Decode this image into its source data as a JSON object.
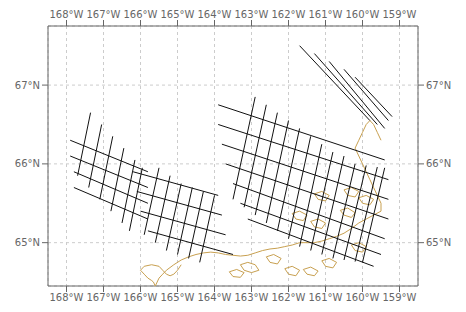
{
  "chart_data": {
    "type": "line",
    "xlim": [
      -168.5,
      -158.5
    ],
    "ylim": [
      64.45,
      67.75
    ],
    "xticks": [
      {
        "value": -168,
        "label": "168°W"
      },
      {
        "value": -167,
        "label": "167°W"
      },
      {
        "value": -166,
        "label": "166°W"
      },
      {
        "value": -165,
        "label": "165°W"
      },
      {
        "value": -164,
        "label": "164°W"
      },
      {
        "value": -163,
        "label": "163°W"
      },
      {
        "value": -162,
        "label": "162°W"
      },
      {
        "value": -161,
        "label": "161°W"
      },
      {
        "value": -160,
        "label": "160°W"
      },
      {
        "value": -159,
        "label": "159°W"
      }
    ],
    "yticks": [
      {
        "value": 65,
        "label": "65°N"
      },
      {
        "value": 66,
        "label": "66°N"
      },
      {
        "value": 67,
        "label": "67°N"
      }
    ],
    "grid": true,
    "series": [
      {
        "color": "#c8a050",
        "x": [
          -165.55,
          -165.5,
          -165.4,
          -165.3,
          -165.1,
          -164.9,
          -164.7,
          -164.5,
          -164.3,
          -164.1,
          -163.9,
          -163.7,
          -163.5,
          -163.3,
          -163.1,
          -162.9,
          -162.7,
          -162.5,
          -162.3,
          -162.1,
          -161.9,
          -161.7,
          -161.5,
          -161.3,
          -161.1,
          -160.9,
          -160.7,
          -160.5,
          -160.3,
          -160.1,
          -159.9,
          -159.7,
          -159.5
        ],
        "values": [
          64.5,
          64.55,
          64.6,
          64.65,
          64.72,
          64.78,
          64.82,
          64.85,
          64.87,
          64.88,
          64.87,
          64.85,
          64.84,
          64.83,
          64.84,
          64.87,
          64.9,
          64.92,
          64.93,
          64.95,
          64.97,
          65.0,
          65.0,
          65.0,
          65.02,
          65.05,
          65.08,
          65.12,
          65.18,
          65.25,
          65.3,
          65.35,
          65.4
        ]
      },
      {
        "color": "#c8a050",
        "x": [
          -165.55,
          -165.6,
          -165.65,
          -165.7,
          -165.8,
          -165.9,
          -166.0,
          -165.9,
          -165.7,
          -165.5,
          -165.4,
          -165.3,
          -165.2,
          -165.1,
          -165.0,
          -164.9
        ],
        "values": [
          64.5,
          64.45,
          64.5,
          64.52,
          64.55,
          64.6,
          64.65,
          64.7,
          64.72,
          64.7,
          64.65,
          64.6,
          64.58,
          64.6,
          64.65,
          64.72
        ]
      },
      {
        "color": "#c8a050",
        "x": [
          -159.5,
          -159.5,
          -159.6,
          -159.7,
          -159.8,
          -159.9,
          -160.0,
          -160.1,
          -160.2,
          -160.1,
          -160.0,
          -159.9,
          -159.8,
          -159.7,
          -159.6,
          -159.5
        ],
        "values": [
          65.4,
          65.5,
          65.6,
          65.7,
          65.8,
          65.9,
          66.0,
          66.1,
          66.2,
          66.3,
          66.4,
          66.5,
          66.55,
          66.5,
          66.4,
          66.3
        ]
      },
      {
        "color": "#c8a050",
        "x": [
          -163.2,
          -163.0,
          -162.8,
          -162.9,
          -163.1,
          -163.3,
          -163.2
        ],
        "values": [
          64.65,
          64.62,
          64.65,
          64.72,
          64.75,
          64.72,
          64.65
        ]
      },
      {
        "color": "#c8a050",
        "x": [
          -162.0,
          -161.8,
          -161.7,
          -161.9,
          -162.1,
          -162.0
        ],
        "values": [
          64.6,
          64.58,
          64.65,
          64.7,
          64.67,
          64.6
        ]
      },
      {
        "color": "#c8a050",
        "x": [
          -161.0,
          -160.8,
          -160.7,
          -160.9,
          -161.1,
          -161.0
        ],
        "values": [
          64.7,
          64.68,
          64.75,
          64.8,
          64.77,
          64.7
        ]
      },
      {
        "color": "#c8a050",
        "x": [
          -160.2,
          -160.0,
          -159.9,
          -160.1,
          -160.3,
          -160.2
        ],
        "values": [
          64.9,
          64.88,
          64.95,
          65.0,
          64.97,
          64.9
        ]
      },
      {
        "color": "#c8a050",
        "x": [
          -160.5,
          -160.3,
          -160.2,
          -160.4,
          -160.6,
          -160.5
        ],
        "values": [
          65.35,
          65.32,
          65.38,
          65.44,
          65.41,
          65.35
        ]
      },
      {
        "color": "#c8a050",
        "x": [
          -161.3,
          -161.1,
          -161.0,
          -161.2,
          -161.4,
          -161.3
        ],
        "values": [
          65.2,
          65.18,
          65.25,
          65.3,
          65.27,
          65.2
        ]
      },
      {
        "color": "#c8a050",
        "x": [
          -161.8,
          -161.6,
          -161.5,
          -161.7,
          -161.9,
          -161.8
        ],
        "values": [
          65.3,
          65.28,
          65.35,
          65.4,
          65.37,
          65.3
        ]
      },
      {
        "color": "#c8a050",
        "x": [
          -162.5,
          -162.3,
          -162.2,
          -162.4,
          -162.6,
          -162.5
        ],
        "values": [
          64.75,
          64.73,
          64.8,
          64.85,
          64.82,
          64.75
        ]
      },
      {
        "color": "#c8a050",
        "x": [
          -163.5,
          -163.3,
          -163.2,
          -163.4,
          -163.6,
          -163.5
        ],
        "values": [
          64.57,
          64.56,
          64.62,
          64.66,
          64.63,
          64.57
        ]
      },
      {
        "color": "#c8a050",
        "x": [
          -161.5,
          -161.3,
          -161.2,
          -161.4,
          -161.6,
          -161.5
        ],
        "values": [
          64.6,
          64.58,
          64.64,
          64.69,
          64.66,
          64.6
        ]
      },
      {
        "color": "#c8a050",
        "x": [
          -160.0,
          -159.8,
          -159.7,
          -159.9,
          -160.1,
          -160.0
        ],
        "values": [
          65.5,
          65.48,
          65.55,
          65.6,
          65.57,
          65.5
        ]
      },
      {
        "color": "#c8a050",
        "x": [
          -160.4,
          -160.2,
          -160.1,
          -160.3,
          -160.5,
          -160.4
        ],
        "values": [
          65.6,
          65.58,
          65.65,
          65.7,
          65.67,
          65.6
        ]
      },
      {
        "color": "#c8a050",
        "x": [
          -161.2,
          -161.0,
          -160.9,
          -161.1,
          -161.3,
          -161.2
        ],
        "values": [
          65.55,
          65.53,
          65.6,
          65.65,
          65.62,
          65.55
        ]
      },
      {
        "color": "#111111",
        "x": [
          -167.7,
          -167.35
        ],
        "values": [
          65.85,
          66.65
        ]
      },
      {
        "color": "#111111",
        "x": [
          -167.4,
          -167.05
        ],
        "values": [
          65.7,
          66.5
        ]
      },
      {
        "color": "#111111",
        "x": [
          -167.1,
          -166.75
        ],
        "values": [
          65.55,
          66.35
        ]
      },
      {
        "color": "#111111",
        "x": [
          -166.8,
          -166.45
        ],
        "values": [
          65.4,
          66.2
        ]
      },
      {
        "color": "#111111",
        "x": [
          -166.5,
          -166.15
        ],
        "values": [
          65.25,
          66.05
        ]
      },
      {
        "color": "#111111",
        "x": [
          -166.3,
          -165.95
        ],
        "values": [
          65.15,
          65.95
        ]
      },
      {
        "color": "#111111",
        "x": [
          -167.8,
          -165.8
        ],
        "values": [
          65.9,
          65.5
        ]
      },
      {
        "color": "#111111",
        "x": [
          -167.9,
          -165.8
        ],
        "values": [
          66.1,
          65.7
        ]
      },
      {
        "color": "#111111",
        "x": [
          -167.9,
          -165.8
        ],
        "values": [
          66.3,
          65.9
        ]
      },
      {
        "color": "#111111",
        "x": [
          -167.8,
          -165.8
        ],
        "values": [
          65.7,
          65.3
        ]
      },
      {
        "color": "#111111",
        "x": [
          -165.9,
          -165.5
        ],
        "values": [
          65.1,
          65.95
        ]
      },
      {
        "color": "#111111",
        "x": [
          -165.6,
          -165.2
        ],
        "values": [
          65.0,
          65.85
        ]
      },
      {
        "color": "#111111",
        "x": [
          -165.3,
          -164.9
        ],
        "values": [
          64.9,
          65.75
        ]
      },
      {
        "color": "#111111",
        "x": [
          -165.0,
          -164.6
        ],
        "values": [
          64.85,
          65.7
        ]
      },
      {
        "color": "#111111",
        "x": [
          -164.7,
          -164.3
        ],
        "values": [
          64.8,
          65.65
        ]
      },
      {
        "color": "#111111",
        "x": [
          -164.4,
          -164.0
        ],
        "values": [
          64.75,
          65.6
        ]
      },
      {
        "color": "#111111",
        "x": [
          -166.0,
          -163.7
        ],
        "values": [
          65.4,
          65.1
        ]
      },
      {
        "color": "#111111",
        "x": [
          -166.1,
          -163.8
        ],
        "values": [
          65.65,
          65.35
        ]
      },
      {
        "color": "#111111",
        "x": [
          -166.2,
          -163.9
        ],
        "values": [
          65.9,
          65.6
        ]
      },
      {
        "color": "#111111",
        "x": [
          -165.8,
          -163.5
        ],
        "values": [
          65.15,
          64.85
        ]
      },
      {
        "color": "#111111",
        "x": [
          -163.5,
          -162.9
        ],
        "values": [
          65.55,
          66.85
        ]
      },
      {
        "color": "#111111",
        "x": [
          -163.2,
          -162.6
        ],
        "values": [
          65.45,
          66.75
        ]
      },
      {
        "color": "#111111",
        "x": [
          -162.9,
          -162.3
        ],
        "values": [
          65.35,
          66.65
        ]
      },
      {
        "color": "#111111",
        "x": [
          -162.6,
          -162.0
        ],
        "values": [
          65.25,
          66.55
        ]
      },
      {
        "color": "#111111",
        "x": [
          -162.3,
          -161.7
        ],
        "values": [
          65.15,
          66.45
        ]
      },
      {
        "color": "#111111",
        "x": [
          -162.0,
          -161.4
        ],
        "values": [
          65.05,
          66.35
        ]
      },
      {
        "color": "#111111",
        "x": [
          -161.7,
          -161.1
        ],
        "values": [
          64.95,
          66.25
        ]
      },
      {
        "color": "#111111",
        "x": [
          -161.4,
          -160.8
        ],
        "values": [
          64.9,
          66.15
        ]
      },
      {
        "color": "#111111",
        "x": [
          -161.1,
          -160.5
        ],
        "values": [
          64.85,
          66.1
        ]
      },
      {
        "color": "#111111",
        "x": [
          -160.8,
          -160.2
        ],
        "values": [
          64.8,
          66.0
        ]
      },
      {
        "color": "#111111",
        "x": [
          -160.5,
          -159.9
        ],
        "values": [
          64.78,
          65.98
        ]
      },
      {
        "color": "#111111",
        "x": [
          -160.2,
          -159.6
        ],
        "values": [
          64.76,
          65.96
        ]
      },
      {
        "color": "#111111",
        "x": [
          -160.0,
          -159.4
        ],
        "values": [
          64.75,
          65.95
        ]
      },
      {
        "color": "#111111",
        "x": [
          -163.7,
          -159.3
        ],
        "values": [
          66.0,
          65.3
        ]
      },
      {
        "color": "#111111",
        "x": [
          -163.8,
          -159.3
        ],
        "values": [
          66.25,
          65.55
        ]
      },
      {
        "color": "#111111",
        "x": [
          -163.9,
          -159.3
        ],
        "values": [
          66.5,
          65.8
        ]
      },
      {
        "color": "#111111",
        "x": [
          -163.9,
          -159.4
        ],
        "values": [
          66.75,
          66.05
        ]
      },
      {
        "color": "#111111",
        "x": [
          -163.5,
          -159.4
        ],
        "values": [
          65.75,
          65.05
        ]
      },
      {
        "color": "#111111",
        "x": [
          -163.3,
          -159.5
        ],
        "values": [
          65.5,
          64.85
        ]
      },
      {
        "color": "#111111",
        "x": [
          -163.1,
          -159.7
        ],
        "values": [
          65.3,
          64.7
        ]
      },
      {
        "color": "#111111",
        "x": [
          -161.7,
          -159.8
        ],
        "values": [
          67.5,
          66.55
        ]
      },
      {
        "color": "#111111",
        "x": [
          -161.3,
          -159.6
        ],
        "values": [
          67.4,
          66.5
        ]
      },
      {
        "color": "#111111",
        "x": [
          -160.9,
          -159.4
        ],
        "values": [
          67.3,
          66.45
        ]
      },
      {
        "color": "#111111",
        "x": [
          -160.5,
          -159.3
        ],
        "values": [
          67.2,
          66.55
        ]
      },
      {
        "color": "#111111",
        "x": [
          -160.2,
          -159.2
        ],
        "values": [
          67.1,
          66.6
        ]
      }
    ]
  }
}
